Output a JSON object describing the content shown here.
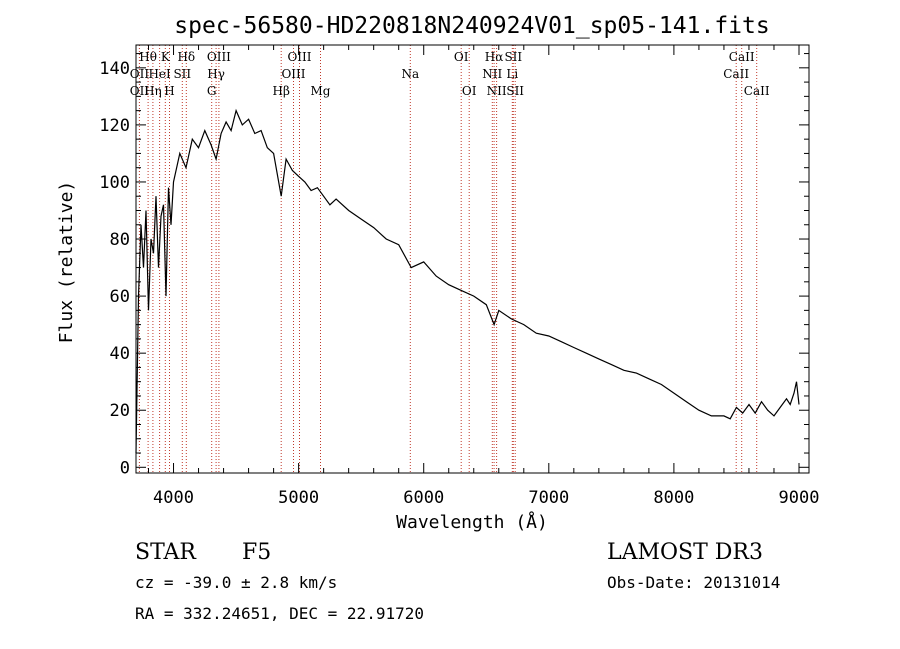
{
  "chart_data": {
    "type": "line",
    "title": "spec-56580-HD220818N240924V01_sp05-141.fits",
    "xlabel": "Wavelength (Å)",
    "ylabel": "Flux (relative)",
    "xlim": [
      3700,
      9080
    ],
    "ylim": [
      -2,
      148
    ],
    "xticks": [
      4000,
      5000,
      6000,
      7000,
      8000,
      9000
    ],
    "yticks": [
      0,
      20,
      40,
      60,
      80,
      100,
      120,
      140
    ],
    "series": [
      {
        "name": "flux",
        "x": [
          3700,
          3720,
          3740,
          3760,
          3780,
          3800,
          3820,
          3840,
          3860,
          3880,
          3900,
          3920,
          3940,
          3960,
          3980,
          4000,
          4050,
          4100,
          4150,
          4200,
          4250,
          4300,
          4340,
          4380,
          4420,
          4460,
          4500,
          4550,
          4600,
          4650,
          4700,
          4750,
          4800,
          4861,
          4900,
          4950,
          5000,
          5050,
          5100,
          5150,
          5200,
          5250,
          5300,
          5400,
          5500,
          5600,
          5700,
          5800,
          5900,
          6000,
          6100,
          6200,
          6300,
          6400,
          6500,
          6563,
          6600,
          6700,
          6800,
          6900,
          7000,
          7100,
          7200,
          7300,
          7400,
          7500,
          7600,
          7700,
          7800,
          7900,
          8000,
          8100,
          8200,
          8300,
          8400,
          8450,
          8500,
          8550,
          8600,
          8650,
          8700,
          8750,
          8800,
          8850,
          8900,
          8930,
          8960,
          8980,
          9000
        ],
        "y": [
          5,
          60,
          85,
          70,
          90,
          55,
          80,
          75,
          95,
          70,
          88,
          92,
          60,
          98,
          85,
          100,
          110,
          105,
          115,
          112,
          118,
          113,
          108,
          117,
          121,
          118,
          125,
          120,
          122,
          117,
          118,
          112,
          110,
          95,
          108,
          104,
          102,
          100,
          97,
          98,
          95,
          92,
          94,
          90,
          87,
          84,
          80,
          78,
          70,
          72,
          67,
          64,
          62,
          60,
          57,
          50,
          55,
          52,
          50,
          47,
          46,
          44,
          42,
          40,
          38,
          36,
          34,
          33,
          31,
          29,
          26,
          23,
          20,
          18,
          18,
          17,
          21,
          19,
          22,
          19,
          23,
          20,
          18,
          21,
          24,
          22,
          26,
          30,
          22
        ]
      }
    ],
    "spectral_lines": [
      {
        "name": "Hθ",
        "wavelength": 3797,
        "row": 1
      },
      {
        "name": "OII",
        "wavelength": 3727,
        "row": 2
      },
      {
        "name": "OII",
        "wavelength": 3727,
        "row": 3
      },
      {
        "name": "Hη",
        "wavelength": 3835,
        "row": 3
      },
      {
        "name": "HeI",
        "wavelength": 3889,
        "row": 2
      },
      {
        "name": "K",
        "wavelength": 3934,
        "row": 1
      },
      {
        "name": "SII",
        "wavelength": 4070,
        "row": 2
      },
      {
        "name": "H",
        "wavelength": 3968,
        "row": 3
      },
      {
        "name": "Hδ",
        "wavelength": 4102,
        "row": 1
      },
      {
        "name": "OIII",
        "wavelength": 4363,
        "row": 1
      },
      {
        "name": "Hγ",
        "wavelength": 4340,
        "row": 2
      },
      {
        "name": "G",
        "wavelength": 4305,
        "row": 3
      },
      {
        "name": "OIII",
        "wavelength": 5007,
        "row": 1
      },
      {
        "name": "OIII",
        "wavelength": 4959,
        "row": 2
      },
      {
        "name": "Hβ",
        "wavelength": 4861,
        "row": 3
      },
      {
        "name": "Mg",
        "wavelength": 5175,
        "row": 3
      },
      {
        "name": "Na",
        "wavelength": 5893,
        "row": 2
      },
      {
        "name": "OI",
        "wavelength": 6300,
        "row": 1
      },
      {
        "name": "OI",
        "wavelength": 6364,
        "row": 3
      },
      {
        "name": "Hα",
        "wavelength": 6563,
        "row": 1
      },
      {
        "name": "SII",
        "wavelength": 6716,
        "row": 1
      },
      {
        "name": "NII",
        "wavelength": 6548,
        "row": 2
      },
      {
        "name": "Li",
        "wavelength": 6708,
        "row": 2
      },
      {
        "name": "NII",
        "wavelength": 6583,
        "row": 3
      },
      {
        "name": "SII",
        "wavelength": 6731,
        "row": 3
      },
      {
        "name": "CaII",
        "wavelength": 8542,
        "row": 1
      },
      {
        "name": "CaII",
        "wavelength": 8498,
        "row": 2
      },
      {
        "name": "CaII",
        "wavelength": 8662,
        "row": 3
      }
    ]
  },
  "info": {
    "object_class": "STAR",
    "subclass": "F5",
    "survey": "LAMOST DR3",
    "cz": "cz = -39.0 ± 2.8 km/s",
    "obs_date": "Obs-Date: 20131014",
    "coords": "RA = 332.24651, DEC =  22.91720"
  },
  "colors": {
    "line_marker": "#c0392b",
    "spectrum": "#000000"
  }
}
